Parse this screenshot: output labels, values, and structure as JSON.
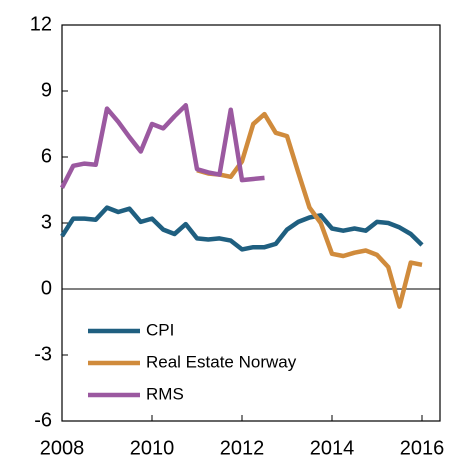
{
  "chart_data": {
    "type": "line",
    "x": [
      2008,
      2008.25,
      2008.5,
      2008.75,
      2009,
      2009.25,
      2009.5,
      2009.75,
      2010,
      2010.25,
      2010.5,
      2010.75,
      2011,
      2011.25,
      2011.5,
      2011.75,
      2012,
      2012.25,
      2012.5,
      2012.75,
      2013,
      2013.25,
      2013.5,
      2013.75,
      2014,
      2014.25,
      2014.5,
      2014.75,
      2015,
      2015.25,
      2015.5,
      2015.75,
      2016
    ],
    "series": [
      {
        "name": "CPI",
        "color": "#1f5f80",
        "values": [
          2.4,
          3.2,
          3.2,
          3.15,
          3.7,
          3.5,
          3.65,
          3.05,
          3.2,
          2.7,
          2.5,
          2.95,
          2.3,
          2.25,
          2.3,
          2.2,
          1.8,
          1.9,
          1.9,
          2.05,
          2.7,
          3.05,
          3.25,
          3.35,
          2.75,
          2.65,
          2.75,
          2.65,
          3.05,
          3.0,
          2.8,
          2.5,
          2.0
        ]
      },
      {
        "name": "Real Estate Norway",
        "color": "#d08b3c",
        "values": [
          null,
          null,
          null,
          null,
          null,
          null,
          null,
          null,
          null,
          null,
          null,
          null,
          5.4,
          5.25,
          5.2,
          5.1,
          5.8,
          7.5,
          7.95,
          7.1,
          6.95,
          5.3,
          3.7,
          3.0,
          1.6,
          1.5,
          1.65,
          1.75,
          1.55,
          1.0,
          -0.8,
          1.2,
          1.1
        ]
      },
      {
        "name": "RMS",
        "color": "#9b59a0",
        "values": [
          4.6,
          5.6,
          5.7,
          5.65,
          8.2,
          7.6,
          6.9,
          6.25,
          7.5,
          7.3,
          7.85,
          8.35,
          5.45,
          5.3,
          5.2,
          8.15,
          4.95,
          5.0,
          5.05,
          null,
          null,
          null,
          null,
          null,
          null,
          null,
          null,
          null,
          null,
          null,
          null,
          null,
          null
        ]
      }
    ],
    "xlim": [
      2008,
      2016.4
    ],
    "xticks": [
      2008,
      2010,
      2012,
      2014,
      2016
    ],
    "ylim": [
      -6,
      12
    ],
    "yticks": [
      -6,
      -3,
      0,
      3,
      6,
      9,
      12
    ],
    "legend": "lower left"
  }
}
